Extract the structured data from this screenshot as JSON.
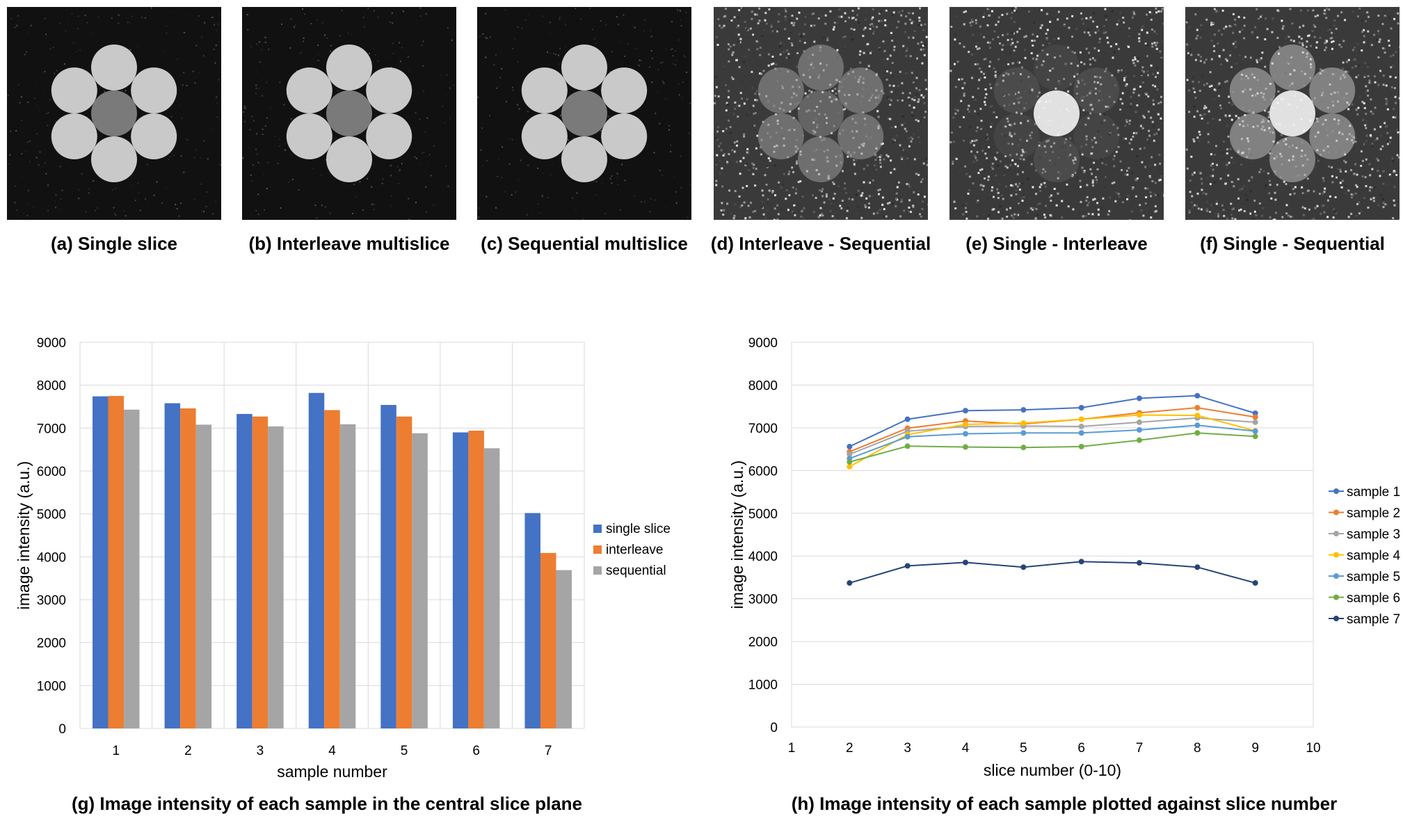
{
  "panels": [
    {
      "id": "a",
      "caption": "(a) Single slice",
      "kind": "phantom"
    },
    {
      "id": "b",
      "caption": "(b) Interleave multislice",
      "kind": "phantom"
    },
    {
      "id": "c",
      "caption": "(c) Sequential multislice",
      "kind": "phantom"
    },
    {
      "id": "d",
      "caption": "(d) Interleave - Sequential",
      "kind": "difference"
    },
    {
      "id": "e",
      "caption": "(e) Single - Interleave",
      "kind": "difference"
    },
    {
      "id": "f",
      "caption": "(f) Single - Sequential",
      "kind": "difference"
    }
  ],
  "captions": {
    "g": "(g) Image intensity of each sample in the central slice plane",
    "h": "(h) Image intensity of each sample plotted against slice number"
  },
  "chart_data": [
    {
      "type": "bar",
      "title": "",
      "xlabel": "sample number",
      "ylabel": "image intensity (a.u.)",
      "ylim": [
        0,
        9000
      ],
      "yticks": [
        0,
        1000,
        2000,
        3000,
        4000,
        5000,
        6000,
        7000,
        8000,
        9000
      ],
      "categories": [
        "1",
        "2",
        "3",
        "4",
        "5",
        "6",
        "7"
      ],
      "legend_position": "right",
      "series": [
        {
          "name": "single slice",
          "color": "#4472C4",
          "values": [
            7740,
            7580,
            7330,
            7820,
            7540,
            6900,
            5020
          ]
        },
        {
          "name": "interleave",
          "color": "#ED7D31",
          "values": [
            7750,
            7460,
            7270,
            7420,
            7270,
            6940,
            4090
          ]
        },
        {
          "name": "sequential",
          "color": "#A5A5A5",
          "values": [
            7430,
            7080,
            7040,
            7090,
            6880,
            6530,
            3690
          ]
        }
      ]
    },
    {
      "type": "line",
      "title": "",
      "xlabel": "slice number (0-10)",
      "ylabel": "image intensity (a.u.)",
      "xlim": [
        1,
        10
      ],
      "ylim": [
        0,
        9000
      ],
      "xticks": [
        1,
        2,
        3,
        4,
        5,
        6,
        7,
        8,
        9,
        10
      ],
      "yticks": [
        0,
        1000,
        2000,
        3000,
        4000,
        5000,
        6000,
        7000,
        8000,
        9000
      ],
      "x": [
        2,
        3,
        4,
        5,
        6,
        7,
        8,
        9
      ],
      "legend_position": "right",
      "series": [
        {
          "name": "sample 1",
          "color": "#4472C4",
          "values": [
            6560,
            7200,
            7400,
            7420,
            7470,
            7690,
            7750,
            7340
          ]
        },
        {
          "name": "sample 2",
          "color": "#ED7D31",
          "values": [
            6440,
            6990,
            7160,
            7090,
            7200,
            7350,
            7470,
            7250
          ]
        },
        {
          "name": "sample 3",
          "color": "#A5A5A5",
          "values": [
            6380,
            6920,
            7030,
            7040,
            7030,
            7130,
            7230,
            7130
          ]
        },
        {
          "name": "sample 4",
          "color": "#FFC000",
          "values": [
            6090,
            6840,
            7080,
            7110,
            7200,
            7300,
            7290,
            6930
          ]
        },
        {
          "name": "sample 5",
          "color": "#5B9BD5",
          "values": [
            6280,
            6790,
            6860,
            6880,
            6880,
            6950,
            7060,
            6920
          ]
        },
        {
          "name": "sample 6",
          "color": "#70AD47",
          "values": [
            6200,
            6570,
            6550,
            6540,
            6560,
            6710,
            6880,
            6800
          ]
        },
        {
          "name": "sample 7",
          "color": "#264478",
          "values": [
            3370,
            3770,
            3850,
            3740,
            3870,
            3840,
            3740,
            3370
          ]
        }
      ]
    }
  ]
}
